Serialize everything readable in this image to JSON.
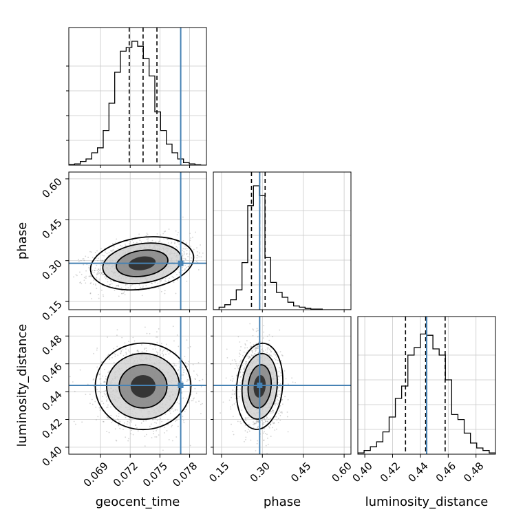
{
  "chart_data": {
    "type": "scatter",
    "plot_kind": "corner",
    "parameters": [
      "geocent_time",
      "phase",
      "luminosity_distance"
    ],
    "ranges": {
      "geocent_time": [
        0.0658,
        0.0797
      ],
      "phase": [
        0.12,
        0.625
      ],
      "luminosity_distance": [
        0.395,
        0.494
      ]
    },
    "ticks": {
      "geocent_time": [
        "0.069",
        "0.072",
        "0.075",
        "0.078"
      ],
      "phase": [
        "0.15",
        "0.30",
        "0.45",
        "0.60"
      ],
      "luminosity_distance": [
        "0.40",
        "0.42",
        "0.44",
        "0.46",
        "0.48"
      ]
    },
    "truths": {
      "geocent_time": 0.0771,
      "phase": 0.29,
      "luminosity_distance": 0.4445
    },
    "quantiles": {
      "geocent_time": [
        0.0719,
        0.0733,
        0.0747
      ],
      "phase": [
        0.26,
        0.29,
        0.31
      ],
      "luminosity_distance": [
        0.4293,
        0.4438,
        0.4578
      ]
    },
    "histograms": {
      "geocent_time": [
        0.005,
        0.01,
        0.03,
        0.05,
        0.1,
        0.14,
        0.28,
        0.5,
        0.75,
        0.92,
        0.95,
        1.0,
        0.96,
        0.86,
        0.72,
        0.43,
        0.28,
        0.17,
        0.1,
        0.05,
        0.02,
        0.01,
        0.003,
        0.0
      ],
      "phase": [
        0.0,
        0.02,
        0.04,
        0.08,
        0.16,
        0.38,
        0.84,
        1.0,
        0.92,
        0.42,
        0.22,
        0.14,
        0.1,
        0.06,
        0.03,
        0.02,
        0.01,
        0.005,
        0.005,
        0.0,
        0.0,
        0.0,
        0.0,
        0.0
      ],
      "luminosity_distance": [
        0.01,
        0.03,
        0.06,
        0.1,
        0.18,
        0.3,
        0.45,
        0.55,
        0.8,
        0.86,
        0.97,
        0.96,
        0.85,
        0.8,
        0.6,
        0.32,
        0.28,
        0.17,
        0.09,
        0.05,
        0.03,
        0.01
      ]
    },
    "pairs": [
      {
        "x": "geocent_time",
        "y": "phase",
        "mean": [
          0.0732,
          0.29
        ],
        "sd": [
          0.0025,
          0.045
        ],
        "corr": 0.3
      },
      {
        "x": "geocent_time",
        "y": "luminosity_distance",
        "mean": [
          0.0733,
          0.4438
        ],
        "sd": [
          0.0023,
          0.0148
        ],
        "corr": 0.0
      },
      {
        "x": "phase",
        "y": "luminosity_distance",
        "mean": [
          0.29,
          0.4438
        ],
        "sd": [
          0.04,
          0.0148
        ],
        "corr": -0.05
      }
    ],
    "grid": true,
    "truth_color": "#4682b4",
    "sample_color": "#808080"
  }
}
